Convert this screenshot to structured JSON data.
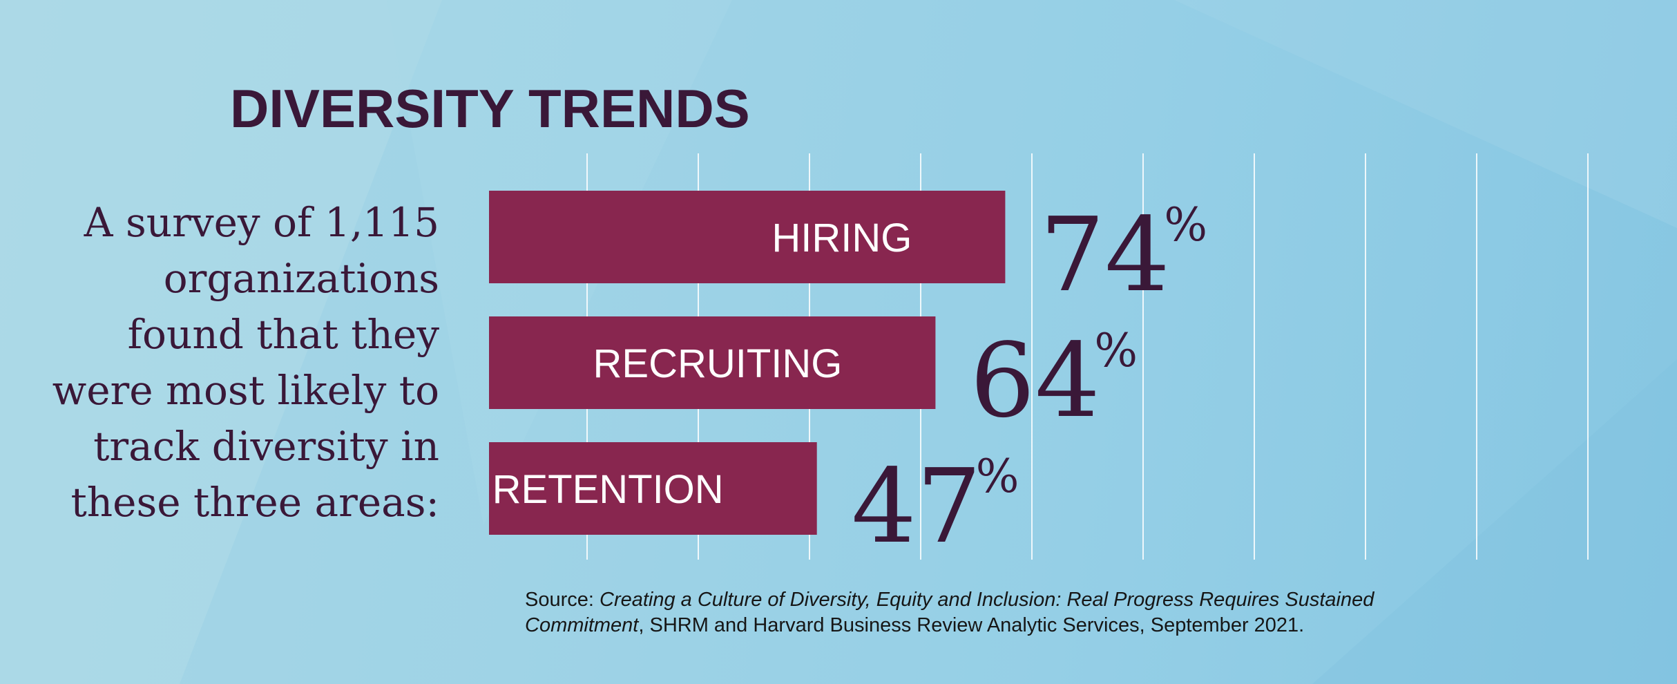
{
  "title": "DIVERSITY TRENDS",
  "intro_lines": [
    "A survey of 1,115",
    "organizations",
    "found that they",
    "were most likely to",
    "track diversity in",
    "these three areas:"
  ],
  "colors": {
    "bar": "#88264f",
    "text_dark": "#3a1838",
    "gridline": "#ffffff"
  },
  "chart_data": {
    "type": "bar",
    "orientation": "horizontal",
    "categories": [
      "HIRING",
      "RECRUITING",
      "RETENTION"
    ],
    "values": [
      74,
      64,
      47
    ],
    "value_labels": [
      "74",
      "64",
      "47"
    ],
    "value_suffix": "%",
    "xlim": [
      0,
      100
    ],
    "grid": true
  },
  "source": {
    "prefix": "Source: ",
    "title_italic_1": "Creating a Culture of Diversity, Equity and Inclusion: Real Progress Requires Sustained",
    "title_italic_2": "Commitment",
    "rest": ", SHRM and Harvard Business Review Analytic Services, September 2021."
  }
}
